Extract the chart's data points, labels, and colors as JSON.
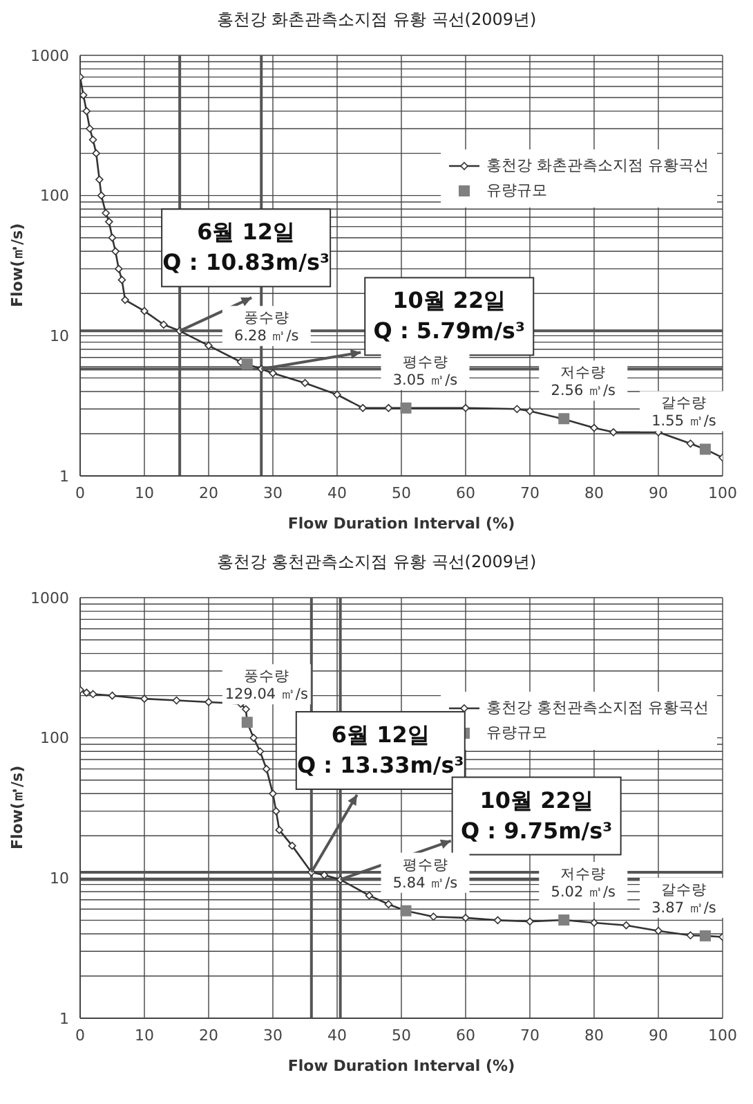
{
  "chart_data": [
    {
      "type": "line",
      "title": "홍천강 화촌관측소지점 유황 곡선(2009년)",
      "xlabel": "Flow Duration Interval (%)",
      "ylabel": "Flow(㎥/s)",
      "log": "y",
      "grid": true,
      "legend": "top right",
      "xlim": [
        0,
        100
      ],
      "xticks": [
        0,
        10,
        20,
        30,
        40,
        50,
        60,
        70,
        80,
        90,
        100
      ],
      "ylim": [
        1,
        1000
      ],
      "yticks": [
        1,
        {
          "value": 2,
          "label": null
        },
        {
          "value": 3,
          "label": null
        },
        {
          "value": 4,
          "label": null
        },
        {
          "value": 5,
          "label": null
        },
        {
          "value": 6,
          "label": null
        },
        {
          "value": 7,
          "label": null
        },
        {
          "value": 8,
          "label": null
        },
        {
          "value": 9,
          "label": null
        },
        10,
        {
          "value": 20,
          "label": null
        },
        {
          "value": 30,
          "label": null
        },
        {
          "value": 40,
          "label": null
        },
        {
          "value": 50,
          "label": null
        },
        {
          "value": 60,
          "label": null
        },
        {
          "value": 70,
          "label": null
        },
        {
          "value": 80,
          "label": null
        },
        {
          "value": 90,
          "label": null
        },
        100,
        {
          "value": 200,
          "label": null
        },
        {
          "value": 300,
          "label": null
        },
        {
          "value": 400,
          "label": null
        },
        {
          "value": 500,
          "label": null
        },
        {
          "value": 600,
          "label": null
        },
        {
          "value": 700,
          "label": null
        },
        {
          "value": 800,
          "label": null
        },
        {
          "value": 900,
          "label": null
        },
        1000
      ],
      "series": [
        {
          "name": "홍천강 화촌관측소지점 유황곡선",
          "marker": "diamond",
          "color": "#333333",
          "x": [
            0,
            0.5,
            1,
            1.5,
            2,
            2.5,
            3,
            3.3,
            4,
            4.5,
            5,
            5.5,
            6,
            6.5,
            7,
            10,
            13,
            15.5,
            20,
            25,
            28.2,
            30,
            35,
            40,
            44,
            48,
            60,
            68,
            70,
            75,
            80,
            83,
            90,
            95,
            97.3,
            100
          ],
          "values": [
            700,
            520,
            400,
            300,
            250,
            200,
            130,
            100,
            75,
            65,
            50,
            40,
            30,
            25,
            18,
            15,
            12,
            10.83,
            8.5,
            6.5,
            5.79,
            5.4,
            4.6,
            3.8,
            3.05,
            3.05,
            3.05,
            3.0,
            2.9,
            2.56,
            2.2,
            2.05,
            2.05,
            1.7,
            1.55,
            1.35
          ]
        },
        {
          "name": "유량규모",
          "type": "scatter",
          "marker": "square",
          "color": "#808080",
          "x": [
            26,
            50.7,
            75.3,
            97.3
          ],
          "values": [
            6.28,
            3.05,
            2.56,
            1.55
          ]
        }
      ],
      "ref_lines": [
        {
          "axis": "x",
          "value": 15.5,
          "color": "#555555"
        },
        {
          "axis": "x",
          "value": 28.2,
          "color": "#555555"
        },
        {
          "axis": "y",
          "value": 10.83,
          "color": "#555555"
        },
        {
          "axis": "y",
          "value": 5.79,
          "color": "#555555"
        }
      ],
      "annotations": [
        {
          "text": "6월 12일\nQ : 10.83m/s³",
          "x": 15.5,
          "y": 10.83
        },
        {
          "text": "10월 22일\nQ : 5.79m/s³",
          "x": 28.2,
          "y": 5.79
        },
        {
          "text": "풍수량\n6.28 ㎥/s",
          "x": 26,
          "y": 6.28
        },
        {
          "text": "평수량\n3.05 ㎥/s",
          "x": 50.7,
          "y": 3.05
        },
        {
          "text": "저수량\n2.56 ㎥/s",
          "x": 75.3,
          "y": 2.56
        },
        {
          "text": "갈수량\n1.55 ㎥/s",
          "x": 97.3,
          "y": 1.55
        }
      ]
    },
    {
      "type": "line",
      "title": "홍천강 홍천관측소지점 유황 곡선(2009년)",
      "xlabel": "Flow Duration Interval (%)",
      "ylabel": "Flow(㎥/s)",
      "log": "y",
      "grid": true,
      "legend": "top right",
      "xlim": [
        0,
        100
      ],
      "xticks": [
        0,
        10,
        20,
        30,
        40,
        50,
        60,
        70,
        80,
        90,
        100
      ],
      "ylim": [
        1,
        1000
      ],
      "yticks": [
        1,
        {
          "value": 2,
          "label": null
        },
        {
          "value": 3,
          "label": null
        },
        {
          "value": 4,
          "label": null
        },
        {
          "value": 5,
          "label": null
        },
        {
          "value": 6,
          "label": null
        },
        {
          "value": 7,
          "label": null
        },
        {
          "value": 8,
          "label": null
        },
        {
          "value": 9,
          "label": null
        },
        10,
        {
          "value": 20,
          "label": null
        },
        {
          "value": 30,
          "label": null
        },
        {
          "value": 40,
          "label": null
        },
        {
          "value": 50,
          "label": null
        },
        {
          "value": 60,
          "label": null
        },
        {
          "value": 70,
          "label": null
        },
        {
          "value": 80,
          "label": null
        },
        {
          "value": 90,
          "label": null
        },
        100,
        {
          "value": 200,
          "label": null
        },
        {
          "value": 300,
          "label": null
        },
        {
          "value": 400,
          "label": null
        },
        {
          "value": 500,
          "label": null
        },
        {
          "value": 600,
          "label": null
        },
        {
          "value": 700,
          "label": null
        },
        {
          "value": 800,
          "label": null
        },
        {
          "value": 900,
          "label": null
        },
        1000
      ],
      "series": [
        {
          "name": "홍천강 홍천관측소지점 유황곡선",
          "marker": "diamond",
          "color": "#333333",
          "x": [
            0,
            1,
            2,
            5,
            10,
            15,
            20,
            25,
            25.8,
            26,
            27,
            28,
            29,
            30,
            30.5,
            31,
            33,
            36,
            38,
            40.5,
            45,
            48,
            50.7,
            55,
            60,
            65,
            70,
            75.3,
            80,
            85,
            90,
            95,
            97.3,
            100
          ],
          "values": [
            220,
            210,
            205,
            200,
            190,
            185,
            180,
            175,
            160,
            129.04,
            100,
            80,
            60,
            40,
            30,
            22,
            17,
            11,
            10.5,
            9.75,
            7.5,
            6.5,
            5.84,
            5.3,
            5.2,
            5.0,
            4.9,
            5.02,
            4.8,
            4.6,
            4.2,
            3.9,
            3.87,
            3.8
          ]
        },
        {
          "name": "유량규모",
          "type": "scatter",
          "marker": "square",
          "color": "#808080",
          "x": [
            26,
            50.7,
            75.3,
            97.3
          ],
          "values": [
            129.04,
            5.84,
            5.02,
            3.87
          ]
        }
      ],
      "ref_lines": [
        {
          "axis": "x",
          "value": 36,
          "color": "#555555"
        },
        {
          "axis": "x",
          "value": 40.5,
          "color": "#555555"
        },
        {
          "axis": "y",
          "value": 11,
          "color": "#555555"
        },
        {
          "axis": "y",
          "value": 9.75,
          "color": "#555555"
        }
      ],
      "annotations": [
        {
          "text": "6월 12일\nQ : 13.33m/s³",
          "x": 36,
          "y": 11
        },
        {
          "text": "10월 22일\nQ : 9.75m/s³",
          "x": 40.5,
          "y": 9.75
        },
        {
          "text": "풍수량\n129.04 ㎥/s",
          "x": 26,
          "y": 129.04
        },
        {
          "text": "평수량\n5.84 ㎥/s",
          "x": 50.7,
          "y": 5.84
        },
        {
          "text": "저수량\n5.02 ㎥/s",
          "x": 75.3,
          "y": 5.02
        },
        {
          "text": "갈수량\n3.87 ㎥/s",
          "x": 97.3,
          "y": 3.87
        }
      ]
    }
  ]
}
